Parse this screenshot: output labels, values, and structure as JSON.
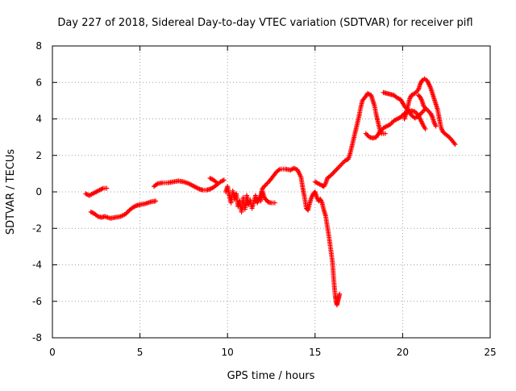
{
  "chart_data": {
    "type": "scatter",
    "title": "Day 227 of 2018, Sidereal Day-to-day VTEC variation (SDTVAR) for receiver pifl",
    "xlabel": "GPS time / hours",
    "ylabel": "SDTVAR / TECUs",
    "xlim": [
      0,
      25
    ],
    "ylim": [
      -8,
      8
    ],
    "x_ticks": [
      "0",
      "5",
      "10",
      "15",
      "20",
      "25"
    ],
    "y_ticks": [
      "-8",
      "-6",
      "-4",
      "-2",
      "0",
      "2",
      "4",
      "6",
      "8"
    ],
    "grid": true,
    "marker": "+",
    "colors": {
      "series": "#ff0000",
      "grid": "#a0a0a0",
      "axis": "#000000"
    },
    "series": [
      {
        "name": "SDTVAR",
        "segments": [
          [
            [
              1.9,
              -0.1
            ],
            [
              2.1,
              -0.2
            ],
            [
              2.3,
              -0.1
            ],
            [
              2.5,
              0.0
            ],
            [
              2.7,
              0.1
            ],
            [
              2.9,
              0.2
            ],
            [
              3.1,
              0.2
            ]
          ],
          [
            [
              2.2,
              -1.1
            ],
            [
              2.4,
              -1.2
            ],
            [
              2.6,
              -1.35
            ],
            [
              2.8,
              -1.4
            ],
            [
              3.0,
              -1.35
            ],
            [
              3.3,
              -1.45
            ],
            [
              3.6,
              -1.4
            ],
            [
              3.9,
              -1.35
            ],
            [
              4.2,
              -1.2
            ],
            [
              4.4,
              -1.0
            ],
            [
              4.6,
              -0.85
            ],
            [
              4.8,
              -0.75
            ],
            [
              5.0,
              -0.7
            ],
            [
              5.3,
              -0.65
            ],
            [
              5.6,
              -0.55
            ],
            [
              5.9,
              -0.5
            ]
          ],
          [
            [
              5.8,
              0.3
            ],
            [
              6.0,
              0.45
            ],
            [
              6.3,
              0.5
            ],
            [
              6.6,
              0.5
            ],
            [
              6.9,
              0.55
            ],
            [
              7.2,
              0.6
            ],
            [
              7.5,
              0.55
            ],
            [
              7.8,
              0.45
            ],
            [
              8.0,
              0.35
            ],
            [
              8.2,
              0.25
            ],
            [
              8.4,
              0.15
            ],
            [
              8.6,
              0.1
            ],
            [
              8.8,
              0.1
            ],
            [
              9.0,
              0.15
            ],
            [
              9.2,
              0.25
            ],
            [
              9.4,
              0.4
            ],
            [
              9.6,
              0.55
            ],
            [
              9.8,
              0.65
            ]
          ],
          [
            [
              9.0,
              0.75
            ],
            [
              9.2,
              0.65
            ],
            [
              9.4,
              0.5
            ]
          ],
          [
            [
              9.9,
              0.0
            ],
            [
              10.0,
              0.3
            ],
            [
              10.1,
              -0.2
            ],
            [
              10.2,
              -0.6
            ],
            [
              10.3,
              0.05
            ],
            [
              10.4,
              -0.4
            ],
            [
              10.5,
              -0.1
            ],
            [
              10.6,
              -0.8
            ],
            [
              10.7,
              -0.5
            ],
            [
              10.8,
              -1.1
            ],
            [
              10.9,
              -0.3
            ],
            [
              11.0,
              -0.95
            ],
            [
              11.1,
              -0.2
            ],
            [
              11.2,
              -0.7
            ],
            [
              11.3,
              -0.45
            ],
            [
              11.4,
              -0.9
            ],
            [
              11.5,
              -0.55
            ],
            [
              11.6,
              -0.2
            ],
            [
              11.7,
              -0.6
            ],
            [
              11.8,
              -0.3
            ],
            [
              11.9,
              -0.5
            ],
            [
              12.0,
              0.0
            ],
            [
              12.1,
              -0.3
            ],
            [
              12.3,
              -0.55
            ],
            [
              12.5,
              -0.6
            ],
            [
              12.7,
              -0.6
            ]
          ],
          [
            [
              11.9,
              -0.2
            ],
            [
              12.0,
              0.2
            ],
            [
              12.2,
              0.4
            ],
            [
              12.4,
              0.6
            ],
            [
              12.6,
              0.85
            ],
            [
              12.8,
              1.1
            ],
            [
              13.0,
              1.25
            ],
            [
              13.3,
              1.25
            ],
            [
              13.6,
              1.2
            ],
            [
              13.8,
              1.3
            ],
            [
              14.0,
              1.2
            ],
            [
              14.2,
              0.8
            ],
            [
              14.3,
              0.2
            ],
            [
              14.4,
              -0.3
            ],
            [
              14.5,
              -0.9
            ],
            [
              14.6,
              -1.0
            ],
            [
              14.7,
              -0.6
            ],
            [
              14.8,
              -0.3
            ],
            [
              14.9,
              -0.1
            ],
            [
              15.0,
              0.0
            ],
            [
              15.1,
              -0.3
            ],
            [
              15.2,
              -0.5
            ],
            [
              15.3,
              -0.4
            ],
            [
              15.4,
              -0.6
            ],
            [
              15.5,
              -1.0
            ],
            [
              15.6,
              -1.3
            ],
            [
              15.7,
              -1.9
            ],
            [
              15.8,
              -2.5
            ],
            [
              15.9,
              -3.2
            ],
            [
              16.0,
              -3.9
            ],
            [
              16.05,
              -4.6
            ],
            [
              16.1,
              -5.2
            ],
            [
              16.15,
              -5.7
            ],
            [
              16.2,
              -6.0
            ],
            [
              16.25,
              -6.2
            ],
            [
              16.3,
              -6.0
            ],
            [
              16.35,
              -5.8
            ],
            [
              16.4,
              -5.6
            ]
          ],
          [
            [
              15.0,
              0.55
            ],
            [
              15.2,
              0.45
            ],
            [
              15.4,
              0.35
            ],
            [
              15.5,
              0.3
            ],
            [
              15.6,
              0.45
            ],
            [
              15.7,
              0.75
            ],
            [
              15.9,
              0.9
            ],
            [
              16.1,
              1.1
            ],
            [
              16.3,
              1.3
            ],
            [
              16.5,
              1.5
            ],
            [
              16.7,
              1.7
            ],
            [
              16.9,
              1.8
            ],
            [
              17.0,
              2.1
            ],
            [
              17.1,
              2.5
            ],
            [
              17.2,
              2.9
            ],
            [
              17.3,
              3.3
            ],
            [
              17.4,
              3.7
            ],
            [
              17.5,
              4.1
            ],
            [
              17.6,
              4.6
            ],
            [
              17.7,
              5.0
            ],
            [
              17.9,
              5.25
            ],
            [
              18.0,
              5.4
            ],
            [
              18.2,
              5.3
            ],
            [
              18.3,
              5.0
            ],
            [
              18.4,
              4.7
            ],
            [
              18.5,
              4.2
            ],
            [
              18.6,
              3.8
            ],
            [
              18.7,
              3.4
            ],
            [
              18.8,
              3.2
            ],
            [
              19.0,
              3.2
            ]
          ],
          [
            [
              17.9,
              3.2
            ],
            [
              18.1,
              3.0
            ],
            [
              18.3,
              2.95
            ],
            [
              18.5,
              3.0
            ],
            [
              18.7,
              3.3
            ],
            [
              18.9,
              3.5
            ],
            [
              19.1,
              3.6
            ],
            [
              19.3,
              3.7
            ],
            [
              19.5,
              3.9
            ],
            [
              19.7,
              4.0
            ],
            [
              19.9,
              4.1
            ],
            [
              20.1,
              4.3
            ],
            [
              20.3,
              4.4
            ],
            [
              20.5,
              4.45
            ],
            [
              20.7,
              4.4
            ],
            [
              20.9,
              4.2
            ],
            [
              21.0,
              4.0
            ],
            [
              21.1,
              3.8
            ],
            [
              21.2,
              3.6
            ],
            [
              21.3,
              3.45
            ]
          ],
          [
            [
              18.9,
              5.45
            ],
            [
              19.1,
              5.4
            ],
            [
              19.3,
              5.35
            ],
            [
              19.5,
              5.3
            ],
            [
              19.7,
              5.15
            ],
            [
              19.9,
              5.05
            ],
            [
              20.1,
              4.7
            ],
            [
              20.3,
              4.5
            ],
            [
              20.5,
              4.2
            ],
            [
              20.7,
              4.05
            ],
            [
              20.9,
              4.15
            ],
            [
              21.1,
              4.35
            ],
            [
              21.3,
              4.55
            ]
          ],
          [
            [
              20.1,
              4.0
            ],
            [
              20.2,
              4.3
            ],
            [
              20.3,
              4.7
            ],
            [
              20.4,
              5.1
            ],
            [
              20.5,
              5.3
            ],
            [
              20.7,
              5.4
            ],
            [
              20.9,
              5.6
            ],
            [
              21.0,
              5.9
            ],
            [
              21.1,
              6.1
            ],
            [
              21.25,
              6.2
            ],
            [
              21.4,
              6.1
            ],
            [
              21.5,
              5.9
            ],
            [
              21.6,
              5.7
            ],
            [
              21.7,
              5.4
            ],
            [
              21.8,
              5.1
            ],
            [
              21.9,
              4.8
            ],
            [
              22.0,
              4.5
            ],
            [
              22.1,
              4.0
            ],
            [
              22.2,
              3.5
            ],
            [
              22.3,
              3.3
            ],
            [
              22.4,
              3.2
            ],
            [
              22.6,
              3.05
            ],
            [
              22.8,
              2.85
            ],
            [
              23.0,
              2.6
            ]
          ],
          [
            [
              20.9,
              5.3
            ],
            [
              21.0,
              5.2
            ],
            [
              21.1,
              5.0
            ],
            [
              21.2,
              4.7
            ],
            [
              21.4,
              4.5
            ],
            [
              21.6,
              4.3
            ],
            [
              21.7,
              4.1
            ],
            [
              21.8,
              3.8
            ],
            [
              21.9,
              3.6
            ]
          ]
        ]
      }
    ]
  }
}
